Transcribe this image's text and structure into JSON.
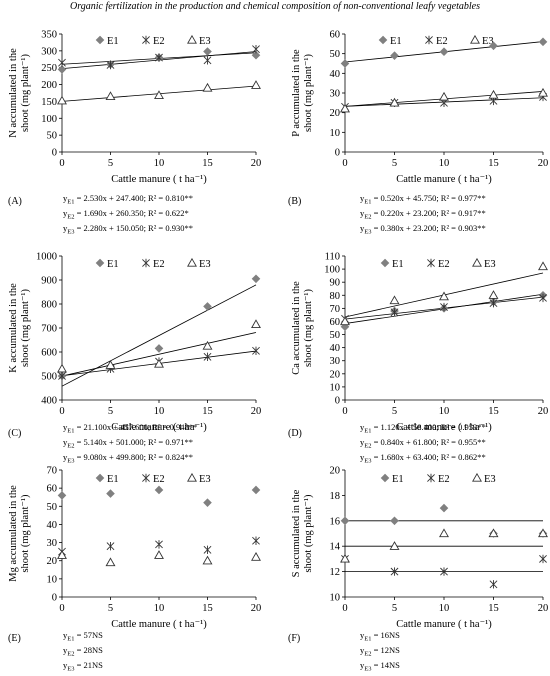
{
  "page_title": "Organic fertilization in the production and chemical composition of non-conventional leafy vegetables",
  "chart_data": [
    {
      "id": "A",
      "type": "scatter",
      "letter": "(A)",
      "ylabel_line1": "N accumulated in the",
      "ylabel_line2": "shoot (mg plant⁻¹)",
      "xlabel": "Cattle manure  ( t ha⁻¹)",
      "x_ticks": [
        0,
        5,
        10,
        15,
        20
      ],
      "y_ticks": [
        0,
        50,
        100,
        150,
        200,
        250,
        300,
        350
      ],
      "ylim": [
        0,
        350
      ],
      "legend": [
        "E1",
        "E2",
        "E3"
      ],
      "series": [
        {
          "name": "E1",
          "marker": "diamond",
          "x": [
            0,
            5,
            10,
            15,
            20
          ],
          "y": [
            245,
            260,
            280,
            298,
            287
          ],
          "fit": [
            2.53,
            247.4
          ]
        },
        {
          "name": "E2",
          "marker": "asterisk",
          "x": [
            0,
            5,
            10,
            15,
            20
          ],
          "y": [
            265,
            258,
            280,
            272,
            305
          ],
          "fit": [
            1.69,
            260.35
          ]
        },
        {
          "name": "E3",
          "marker": "triangle",
          "x": [
            0,
            5,
            10,
            15,
            20
          ],
          "y": [
            152,
            165,
            168,
            190,
            198
          ],
          "fit": [
            2.28,
            150.05
          ]
        }
      ],
      "equations": [
        {
          "lhs": "y",
          "sub": "E1",
          "rhs": "= 2.530x  + 247.400;  R² = 0.810**"
        },
        {
          "lhs": "y",
          "sub": "E2",
          "rhs": "= 1.690x  + 260.350;  R² = 0.622*"
        },
        {
          "lhs": "y",
          "sub": "E3",
          "rhs": "= 2.280x  + 150.050;  R² = 0.930**"
        }
      ]
    },
    {
      "id": "B",
      "type": "scatter",
      "letter": "(B)",
      "ylabel_line1": "P accumulated in the",
      "ylabel_line2": "shoot (mg plant⁻¹)",
      "xlabel": "Cattle manure  ( t ha⁻¹)",
      "x_ticks": [
        0,
        5,
        10,
        15,
        20
      ],
      "y_ticks": [
        0,
        10,
        20,
        30,
        40,
        50,
        60
      ],
      "ylim": [
        0,
        60
      ],
      "legend": [
        "E1",
        "E2",
        "E3"
      ],
      "series": [
        {
          "name": "E1",
          "marker": "diamond",
          "x": [
            0,
            5,
            10,
            15,
            20
          ],
          "y": [
            45,
            49,
            51,
            54,
            56
          ],
          "fit": [
            0.52,
            45.75
          ]
        },
        {
          "name": "E2",
          "marker": "asterisk",
          "x": [
            0,
            5,
            10,
            15,
            20
          ],
          "y": [
            23,
            25,
            25,
            26,
            28
          ],
          "fit": [
            0.22,
            23.2
          ]
        },
        {
          "name": "E3",
          "marker": "triangle",
          "x": [
            0,
            5,
            10,
            15,
            20
          ],
          "y": [
            22,
            25,
            28,
            29,
            30
          ],
          "fit": [
            0.38,
            23.2
          ]
        }
      ],
      "equations": [
        {
          "lhs": "y",
          "sub": "E1",
          "rhs": "= 0.520x  + 45.750;  R² = 0.977**"
        },
        {
          "lhs": "y",
          "sub": "E2",
          "rhs": "= 0.220x  + 23.200;  R² = 0.917**"
        },
        {
          "lhs": "y",
          "sub": "E3",
          "rhs": "= 0.380x  + 23.200;  R² = 0.903**"
        }
      ]
    },
    {
      "id": "C",
      "type": "scatter",
      "letter": "(C)",
      "ylabel_line1": "K accumulated in the",
      "ylabel_line2": "shoot (mg plant⁻¹)",
      "xlabel": "Cattle manure  ( t ha⁻¹)",
      "x_ticks": [
        0,
        5,
        10,
        15,
        20
      ],
      "y_ticks": [
        400,
        500,
        600,
        700,
        800,
        900,
        1000
      ],
      "ylim": [
        400,
        1000
      ],
      "legend": [
        "E1",
        "E2",
        "E3"
      ],
      "series": [
        {
          "name": "E1",
          "marker": "diamond",
          "x": [
            0,
            5,
            10,
            15,
            20
          ],
          "y": [
            500,
            540,
            615,
            790,
            905
          ],
          "fit": [
            21.1,
            457.6
          ]
        },
        {
          "name": "E2",
          "marker": "asterisk",
          "x": [
            0,
            5,
            10,
            15,
            20
          ],
          "y": [
            500,
            530,
            560,
            580,
            605
          ],
          "fit": [
            5.14,
            501.0
          ]
        },
        {
          "name": "E3",
          "marker": "triangle",
          "x": [
            0,
            5,
            10,
            15,
            20
          ],
          "y": [
            530,
            545,
            550,
            625,
            715
          ],
          "fit": [
            9.08,
            499.8
          ]
        }
      ],
      "equations": [
        {
          "lhs": "y",
          "sub": "E1",
          "rhs": "= 21.100x  + 457.600;  R² = 0.948**"
        },
        {
          "lhs": "y",
          "sub": "E2",
          "rhs": "= 5.140x  + 501.000;  R² = 0.971**"
        },
        {
          "lhs": "y",
          "sub": "E3",
          "rhs": "= 9.080x  + 499.800;  R² = 0.824**"
        }
      ]
    },
    {
      "id": "D",
      "type": "scatter",
      "letter": "(D)",
      "ylabel_line1": "Ca accumulated in the",
      "ylabel_line2": "shoot (mg plant⁻¹)",
      "xlabel": "Cattle manure  ( t ha⁻¹)",
      "x_ticks": [
        0,
        5,
        10,
        15,
        20
      ],
      "y_ticks": [
        0,
        10,
        20,
        30,
        40,
        50,
        60,
        70,
        80,
        90,
        100,
        110
      ],
      "ylim": [
        0,
        110
      ],
      "legend": [
        "E1",
        "E2",
        "E3"
      ],
      "series": [
        {
          "name": "E1",
          "marker": "diamond",
          "x": [
            0,
            5,
            10,
            15,
            20
          ],
          "y": [
            56,
            68,
            70,
            75,
            80
          ],
          "fit": [
            1.12,
            58.4
          ]
        },
        {
          "name": "E2",
          "marker": "asterisk",
          "x": [
            0,
            5,
            10,
            15,
            20
          ],
          "y": [
            62,
            67,
            71,
            74,
            78
          ],
          "fit": [
            0.84,
            61.8
          ]
        },
        {
          "name": "E3",
          "marker": "triangle",
          "x": [
            0,
            5,
            10,
            15,
            20
          ],
          "y": [
            60,
            76,
            79,
            80,
            102
          ],
          "fit": [
            1.68,
            63.4
          ]
        }
      ],
      "equations": [
        {
          "lhs": "y",
          "sub": "E1",
          "rhs": "= 1.120x  + 58.400;  R² = 0.953**"
        },
        {
          "lhs": "y",
          "sub": "E2",
          "rhs": "= 0.840x  + 61.800;  R² = 0.955**"
        },
        {
          "lhs": "y",
          "sub": "E3",
          "rhs": "= 1.680x  + 63.400;  R² = 0.862**"
        }
      ]
    },
    {
      "id": "E",
      "type": "scatter",
      "letter": "(E)",
      "ylabel_line1": "Mg accumulated in the",
      "ylabel_line2": "shoot (mg plant⁻¹)",
      "xlabel": "Cattle manure  ( t ha⁻¹)",
      "x_ticks": [
        0,
        5,
        10,
        15,
        20
      ],
      "y_ticks": [
        0,
        10,
        20,
        30,
        40,
        50,
        60,
        70
      ],
      "ylim": [
        0,
        70
      ],
      "legend": [
        "E1",
        "E2",
        "E3"
      ],
      "series": [
        {
          "name": "E1",
          "marker": "diamond",
          "x": [
            0,
            5,
            10,
            15,
            20
          ],
          "y": [
            56,
            57,
            59,
            52,
            59
          ],
          "fit": null
        },
        {
          "name": "E2",
          "marker": "asterisk",
          "x": [
            0,
            5,
            10,
            15,
            20
          ],
          "y": [
            25,
            28,
            29,
            26,
            31
          ],
          "fit": null
        },
        {
          "name": "E3",
          "marker": "triangle",
          "x": [
            0,
            5,
            10,
            15,
            20
          ],
          "y": [
            23,
            19,
            23,
            20,
            22
          ],
          "fit": null
        }
      ],
      "equations": [
        {
          "lhs": "y",
          "sub": "E1",
          "rhs": "= 57NS"
        },
        {
          "lhs": "y",
          "sub": "E2",
          "rhs": "= 28NS"
        },
        {
          "lhs": "y",
          "sub": "E3",
          "rhs": "= 21NS"
        }
      ]
    },
    {
      "id": "F",
      "type": "scatter",
      "letter": "(F)",
      "ylabel_line1": "S accumulated in the",
      "ylabel_line2": "shoot (mg plant⁻¹)",
      "xlabel": "Cattle manure  ( t ha⁻¹)",
      "x_ticks": [
        0,
        5,
        10,
        15,
        20
      ],
      "y_ticks": [
        10,
        12,
        14,
        16,
        18,
        20
      ],
      "ylim": [
        10,
        20
      ],
      "legend": [
        "E1",
        "E2",
        "E3"
      ],
      "series": [
        {
          "name": "E1",
          "marker": "diamond",
          "x": [
            0,
            5,
            10,
            15,
            20
          ],
          "y": [
            16,
            16,
            17,
            15,
            15
          ],
          "fit": [
            0,
            16
          ]
        },
        {
          "name": "E2",
          "marker": "asterisk",
          "x": [
            0,
            5,
            10,
            15,
            20
          ],
          "y": [
            13,
            12,
            12,
            11,
            13
          ],
          "fit": [
            0,
            12
          ]
        },
        {
          "name": "E3",
          "marker": "triangle",
          "x": [
            0,
            5,
            10,
            15,
            20
          ],
          "y": [
            13,
            14,
            15,
            15,
            15
          ],
          "fit": [
            0,
            14
          ]
        }
      ],
      "equations": [
        {
          "lhs": "y",
          "sub": "E1",
          "rhs": "= 16NS"
        },
        {
          "lhs": "y",
          "sub": "E2",
          "rhs": "= 12NS"
        },
        {
          "lhs": "y",
          "sub": "E3",
          "rhs": "= 14NS"
        }
      ]
    }
  ]
}
